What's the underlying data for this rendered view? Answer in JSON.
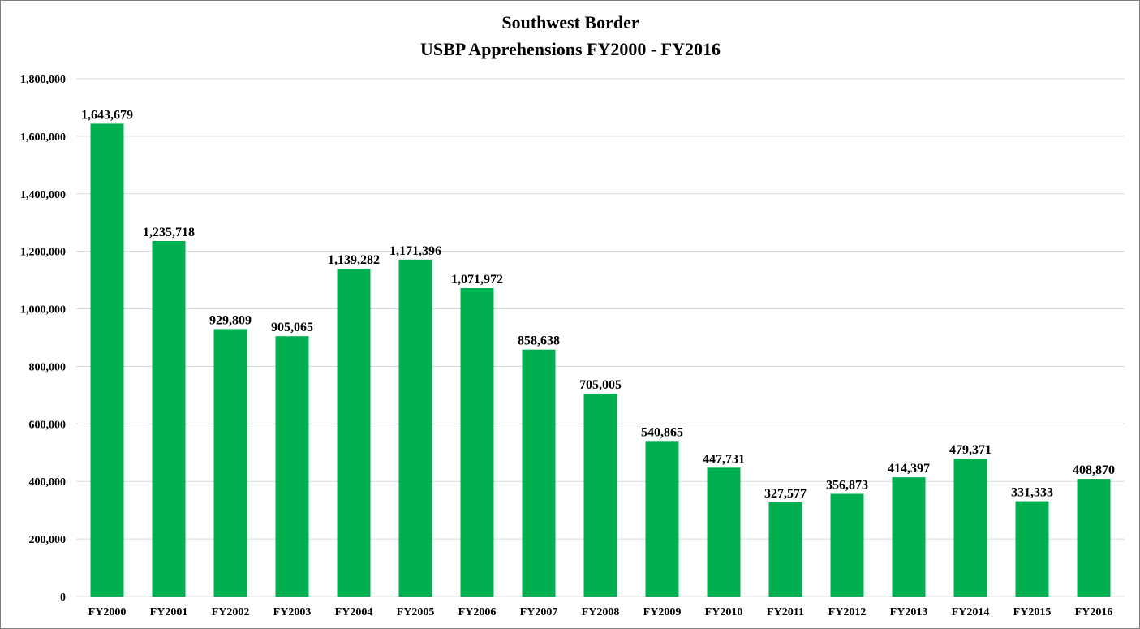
{
  "chart_data": {
    "type": "bar",
    "title": "Southwest Border",
    "subtitle": "USBP Apprehensions FY2000 - FY2016",
    "xlabel": "",
    "ylabel": "",
    "ylim": [
      0,
      1800000
    ],
    "yticks": [
      0,
      200000,
      400000,
      600000,
      800000,
      1000000,
      1200000,
      1400000,
      1600000,
      1800000
    ],
    "ytick_labels": [
      "0",
      "200,000",
      "400,000",
      "600,000",
      "800,000",
      "1,000,000",
      "1,200,000",
      "1,400,000",
      "1,600,000",
      "1,800,000"
    ],
    "grid": true,
    "legend": "none",
    "bar_color": "#00B050",
    "categories": [
      "FY2000",
      "FY2001",
      "FY2002",
      "FY2003",
      "FY2004",
      "FY2005",
      "FY2006",
      "FY2007",
      "FY2008",
      "FY2009",
      "FY2010",
      "FY2011",
      "FY2012",
      "FY2013",
      "FY2014",
      "FY2015",
      "FY2016"
    ],
    "values": [
      1643679,
      1235718,
      929809,
      905065,
      1139282,
      1171396,
      1071972,
      858638,
      705005,
      540865,
      447731,
      327577,
      356873,
      414397,
      479371,
      331333,
      408870
    ],
    "value_labels": [
      "1,643,679",
      "1,235,718",
      "929,809",
      "905,065",
      "1,139,282",
      "1,171,396",
      "1,071,972",
      "858,638",
      "705,005",
      "540,865",
      "447,731",
      "327,577",
      "356,873",
      "414,397",
      "479,371",
      "331,333",
      "408,870"
    ]
  }
}
